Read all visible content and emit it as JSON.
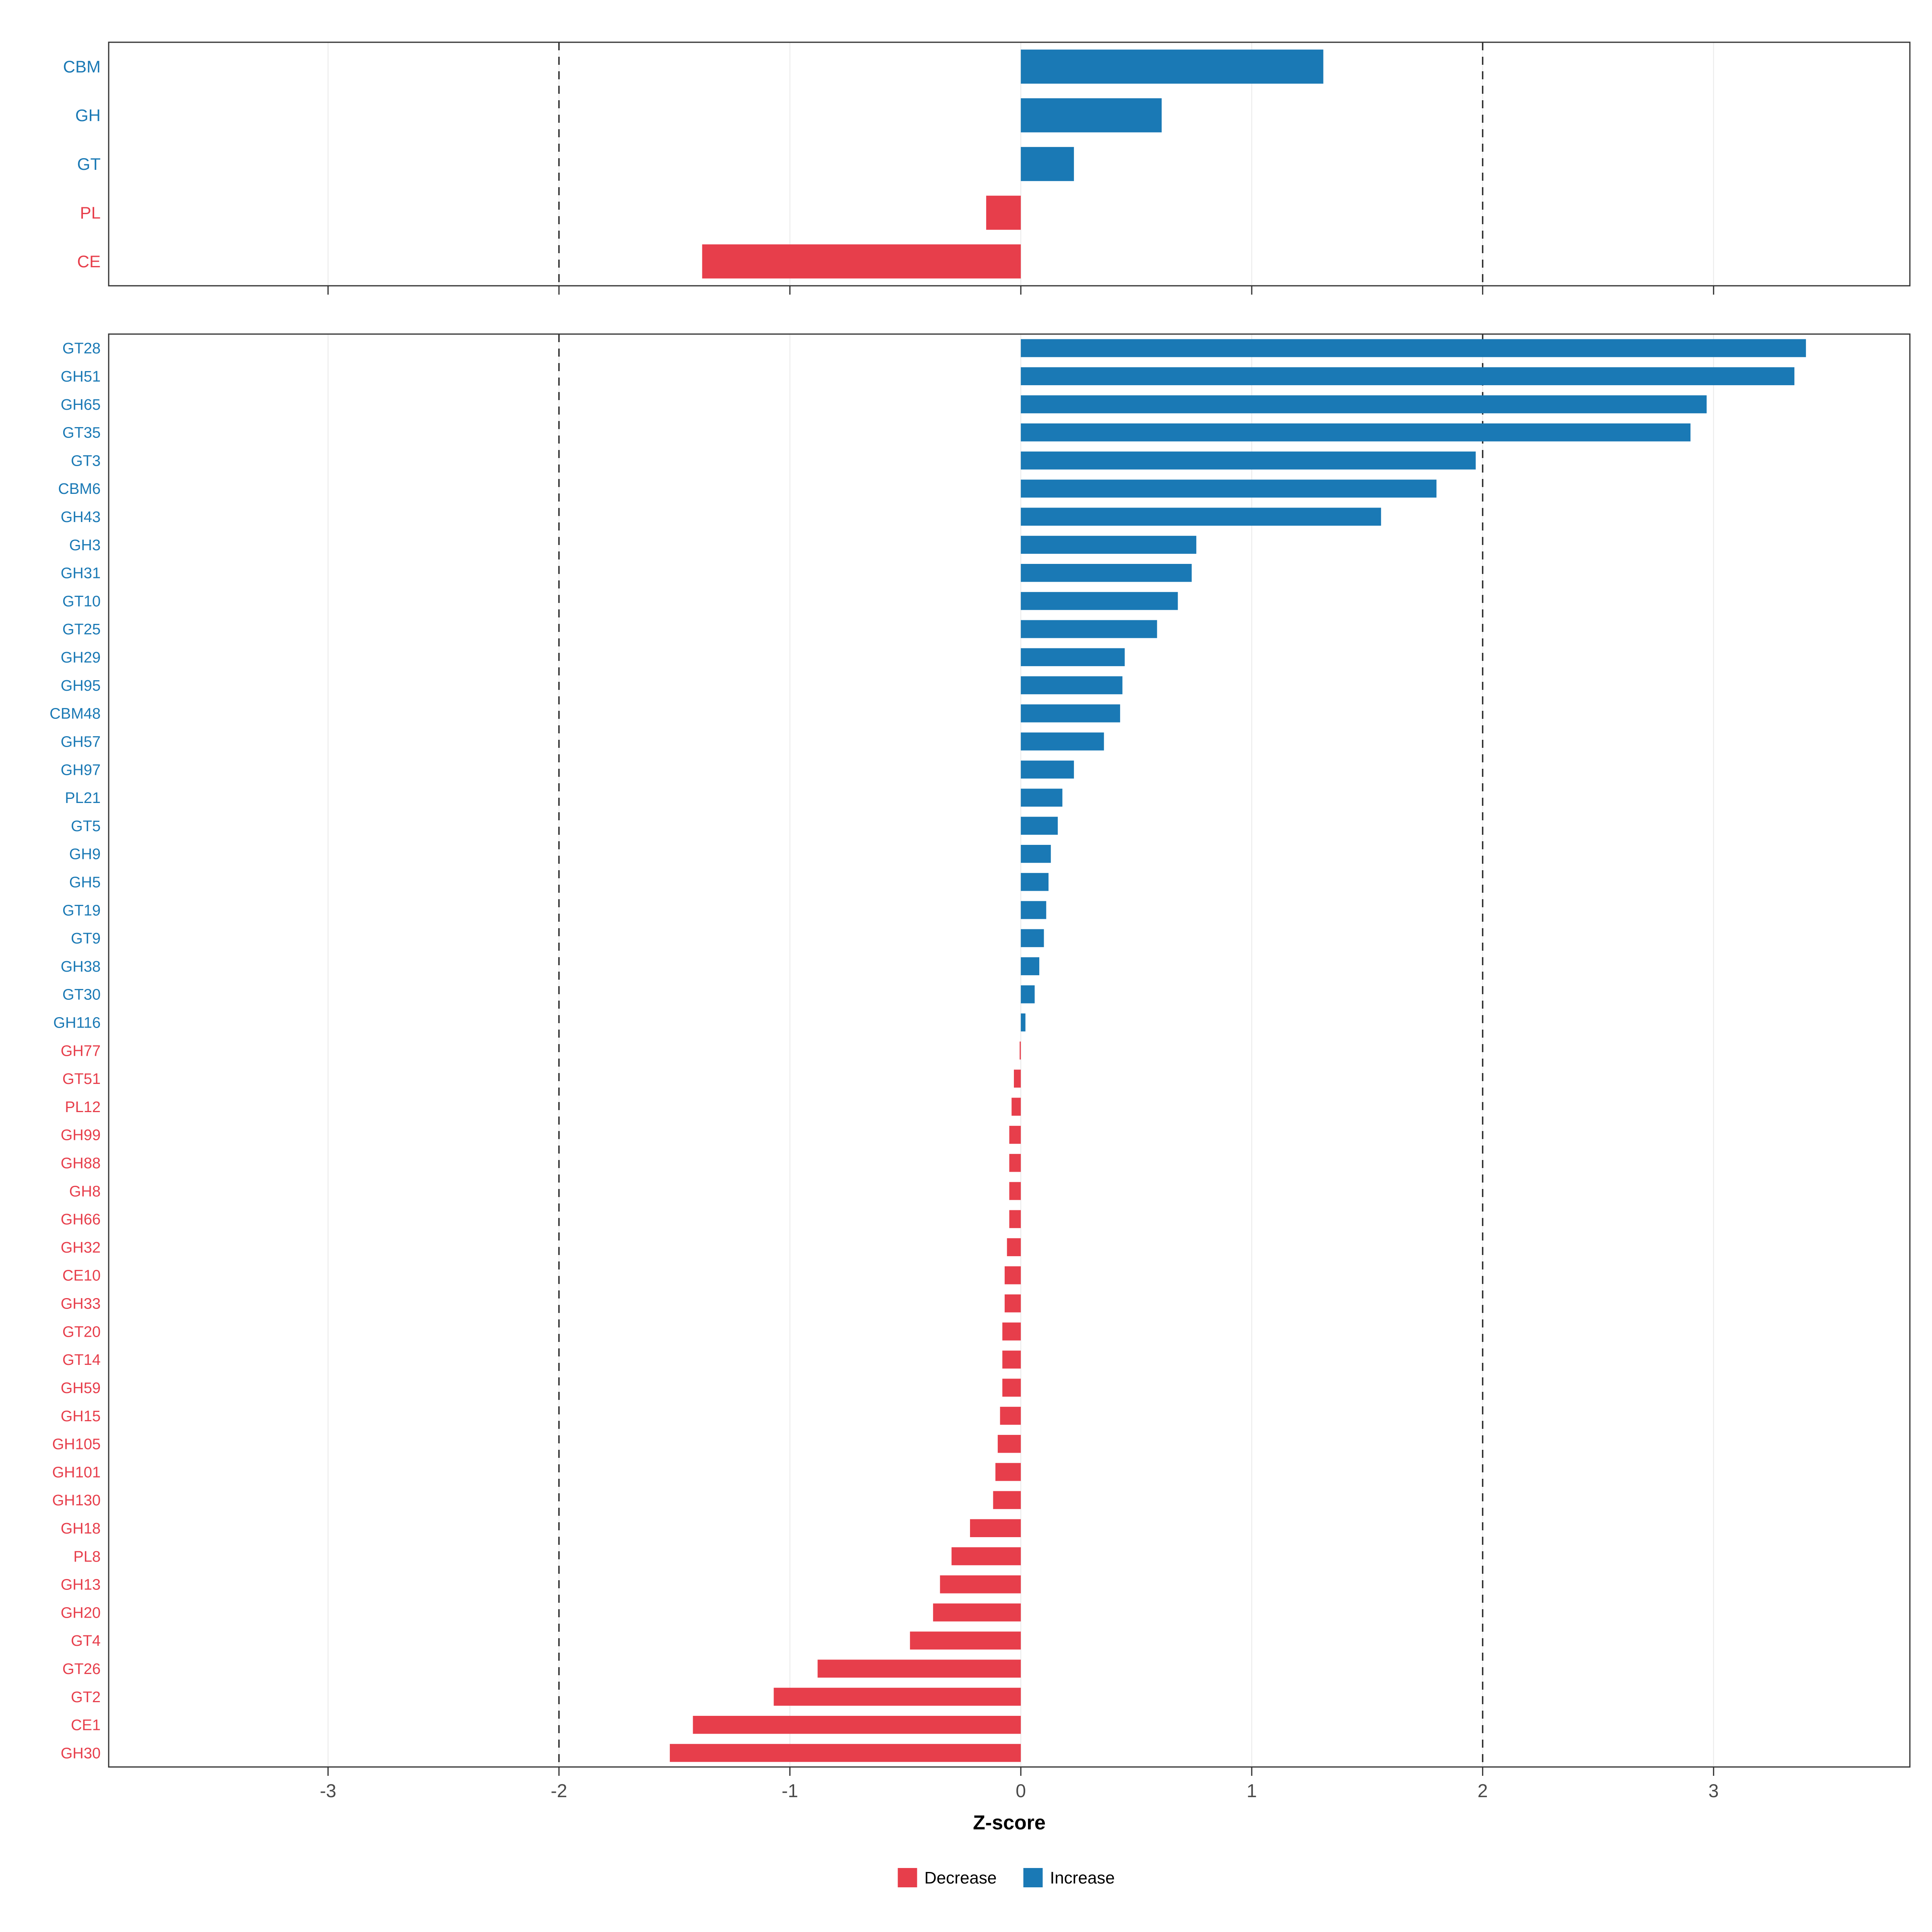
{
  "chart_data": {
    "type": "bar",
    "orientation": "horizontal",
    "title": "",
    "xlabel": "Z-score",
    "ylabel": "",
    "x_ticks": [
      -3,
      -2,
      -1,
      0,
      1,
      2,
      3
    ],
    "x_domain": [
      -3.95,
      3.85
    ],
    "reference_lines": [
      -2,
      2
    ],
    "grid": true,
    "legend_position": "bottom",
    "colors": {
      "increase": "#1a79b5",
      "decrease": "#e73e4b",
      "axis_text": "#4a4a4a",
      "panel_border": "#333333",
      "grid_line": "#e9e9e9",
      "reference_line": "#2b2b2b",
      "label_text": "#000000"
    },
    "legend": {
      "items": [
        {
          "label": "Decrease",
          "key": "decrease"
        },
        {
          "label": "Increase",
          "key": "increase"
        }
      ]
    },
    "panels": [
      {
        "name": "cazyme-class",
        "categories": [
          "CBM",
          "GH",
          "GT",
          "PL",
          "CE"
        ],
        "values": [
          1.31,
          0.61,
          0.23,
          -0.15,
          -1.38
        ]
      },
      {
        "name": "cazyme-family",
        "categories": [
          "GT28",
          "GH51",
          "GH65",
          "GT35",
          "GT3",
          "CBM6",
          "GH43",
          "GH3",
          "GH31",
          "GT10",
          "GT25",
          "GH29",
          "GH95",
          "CBM48",
          "GH57",
          "GH97",
          "PL21",
          "GT5",
          "GH9",
          "GH5",
          "GT19",
          "GT9",
          "GH38",
          "GT30",
          "GH116",
          "GH77",
          "GT51",
          "PL12",
          "GH99",
          "GH88",
          "GH8",
          "GH66",
          "GH32",
          "CE10",
          "GH33",
          "GT20",
          "GT14",
          "GH59",
          "GH15",
          "GH105",
          "GH101",
          "GH130",
          "GH18",
          "PL8",
          "GH13",
          "GH20",
          "GT4",
          "GT26",
          "GT2",
          "CE1",
          "GH30"
        ],
        "values": [
          3.4,
          3.35,
          2.97,
          2.9,
          1.97,
          1.8,
          1.56,
          0.76,
          0.74,
          0.68,
          0.59,
          0.45,
          0.44,
          0.43,
          0.36,
          0.23,
          0.18,
          0.16,
          0.13,
          0.12,
          0.11,
          0.1,
          0.08,
          0.06,
          0.02,
          -0.005,
          -0.03,
          -0.04,
          -0.05,
          -0.05,
          -0.05,
          -0.05,
          -0.06,
          -0.07,
          -0.07,
          -0.08,
          -0.08,
          -0.08,
          -0.09,
          -0.1,
          -0.11,
          -0.12,
          -0.22,
          -0.3,
          -0.35,
          -0.38,
          -0.48,
          -0.88,
          -1.07,
          -1.42,
          -1.52
        ]
      }
    ]
  }
}
